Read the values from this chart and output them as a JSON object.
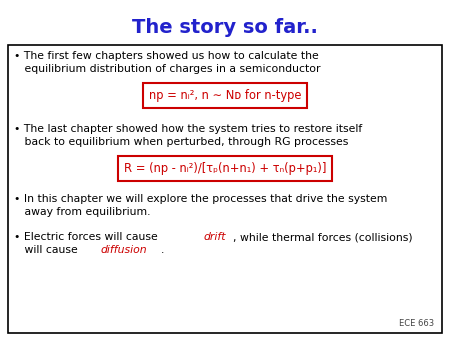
{
  "title": "The story so far..",
  "title_color": "#2222cc",
  "title_fontsize": 14,
  "bg_color": "#ffffff",
  "box_bg": "#ffffff",
  "box_edge": "#000000",
  "text_color": "#000000",
  "red_color": "#cc0000",
  "bullet1_line1": "• The first few chapters showed us how to calculate the",
  "bullet1_line2": "   equilibrium distribution of charges in a semiconductor",
  "formula1_text": "np = nᵢ², n ∼ Nᴅ for n-type",
  "bullet2_line1": "• The last chapter showed how the system tries to restore itself",
  "bullet2_line2": "   back to equilibrium when perturbed, through RG processes",
  "formula2_text": "R = (np - nᵢ²)/[τₚ(n+n₁) + τₙ(p+p₁)]",
  "bullet3_line1": "• In this chapter we will explore the processes that drive the system",
  "bullet3_line2": "   away from equilibrium.",
  "bullet4_pre": "• Electric forces will cause ",
  "bullet4_drift": "drift",
  "bullet4_post": ", while thermal forces (collisions)",
  "bullet4_line2_pre": "   will cause ",
  "bullet4_diffusion": "diffusion",
  "bullet4_line2_post": ".",
  "watermark": "ECE 663",
  "font_size": 7.8
}
